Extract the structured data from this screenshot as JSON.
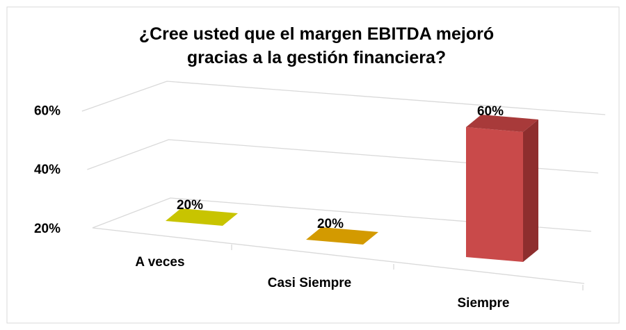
{
  "chart_data": {
    "type": "bar3d",
    "title": "¿Cree usted que el margen EBITDA mejoró gracias a la gestión financiera?",
    "categories": [
      "A veces",
      "Casi Siempre",
      "Siempre"
    ],
    "values": [
      20,
      20,
      60
    ],
    "value_labels": [
      "20%",
      "20%",
      "60%"
    ],
    "colors": [
      "#c8c400",
      "#d39a00",
      "#c94a4a"
    ],
    "ylim": [
      20,
      60
    ],
    "yticks": [
      {
        "value": 20,
        "label": "20%"
      },
      {
        "value": 40,
        "label": "40%"
      },
      {
        "value": 60,
        "label": "60%"
      }
    ],
    "grid": true
  }
}
